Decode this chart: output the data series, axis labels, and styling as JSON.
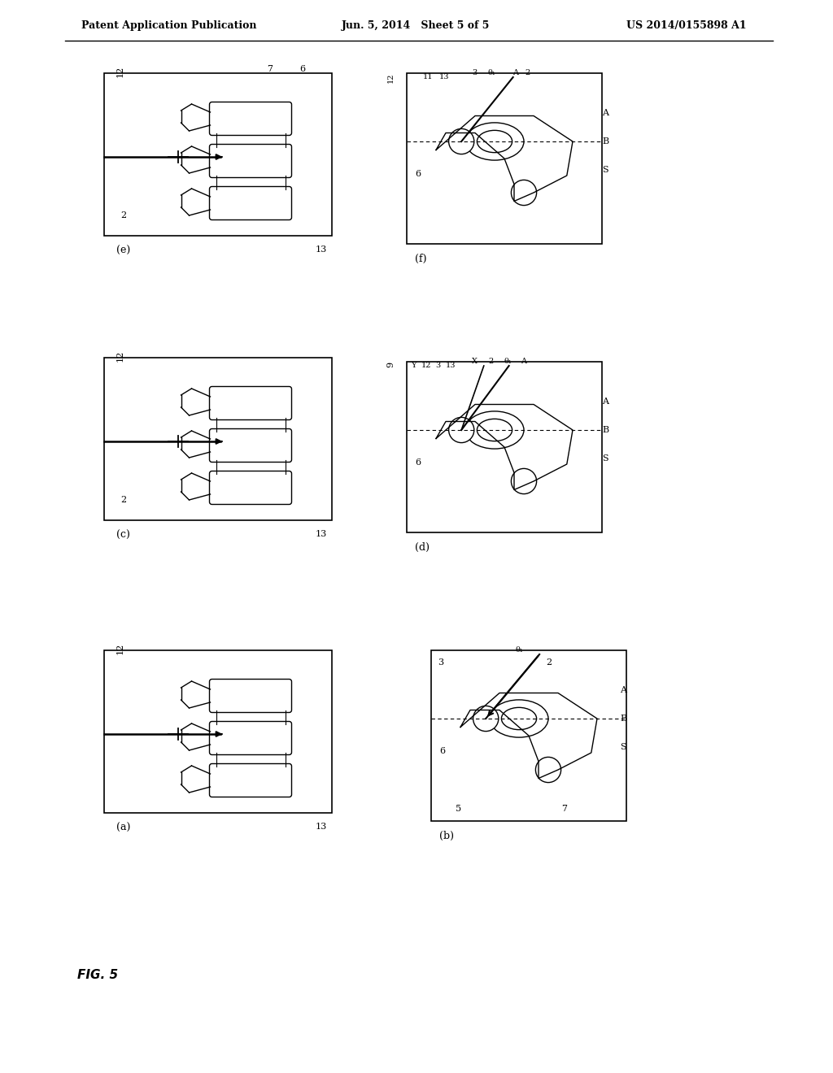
{
  "title_left": "Patent Application Publication",
  "title_mid": "Jun. 5, 2014   Sheet 5 of 5",
  "title_right": "US 2014/0155898 A1",
  "fig_label": "FIG. 5",
  "panel_labels": [
    "(e)",
    "(f)",
    "(c)",
    "(d)",
    "(a)",
    "(b)"
  ],
  "bg_color": "#ffffff",
  "line_color": "#000000",
  "gray_color": "#888888",
  "header_fontsize": 9,
  "label_fontsize": 9,
  "fig_label_fontsize": 11
}
